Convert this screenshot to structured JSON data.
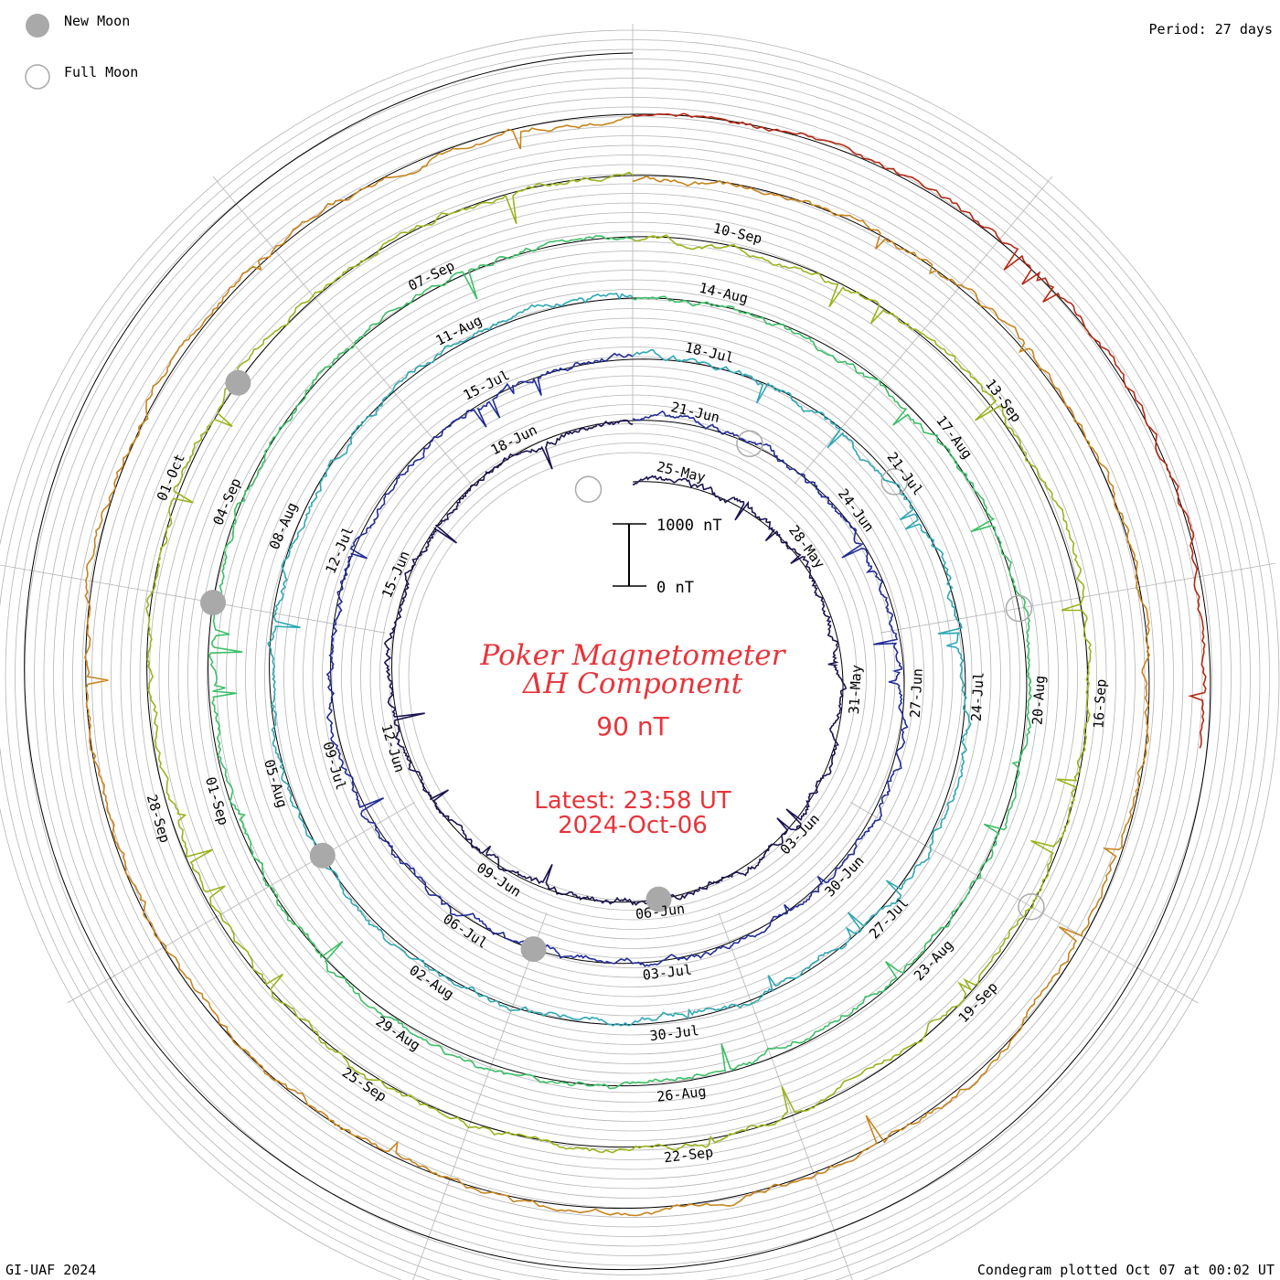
{
  "legend": {
    "new_moon": "New Moon",
    "full_moon": "Full Moon"
  },
  "period": "Period: 27 days",
  "footer_left": "GI-UAF 2024",
  "footer_right": "Condegram plotted Oct 07 at 00:02 UT",
  "title": {
    "line1": "Poker Magnetometer",
    "line2": "ΔH Component",
    "baseline": "90 nT",
    "latest_label": "Latest: 23:58 UT",
    "latest_date": "2024-Oct-06"
  },
  "scale_bar": {
    "top": "1000 nT",
    "bottom": "0 nT"
  },
  "colors": {
    "title": "#e8343a",
    "grid": "#b4b4b4",
    "ref": "#000000",
    "new_moon": "#a9a9a9",
    "full_moon": "#a9a9a9"
  },
  "chart_data": {
    "type": "condegram",
    "period_days": 27,
    "series": [
      {
        "rotation": 1,
        "color": "#1a1450",
        "tick_labels": [
          "25-May",
          "28-May",
          "31-May",
          "03-Jun",
          "06-Jun",
          "09-Jun",
          "12-Jun",
          "15-Jun",
          "18-Jun"
        ]
      },
      {
        "rotation": 2,
        "color": "#222d96",
        "tick_labels": [
          "21-Jun",
          "24-Jun",
          "27-Jun",
          "30-Jun",
          "03-Jul",
          "06-Jul",
          "09-Jul",
          "12-Jul",
          "15-Jul"
        ]
      },
      {
        "rotation": 3,
        "color": "#2ea7b4",
        "tick_labels": [
          "18-Jul",
          "21-Jul",
          "24-Jul",
          "27-Jul",
          "30-Jul",
          "02-Aug",
          "05-Aug",
          "08-Aug",
          "11-Aug"
        ]
      },
      {
        "rotation": 4,
        "color": "#3cbf66",
        "tick_labels": [
          "14-Aug",
          "17-Aug",
          "20-Aug",
          "23-Aug",
          "26-Aug",
          "29-Aug",
          "01-Sep",
          "04-Sep",
          "07-Sep"
        ]
      },
      {
        "rotation": 5,
        "color": "#9ab41e",
        "tick_labels": [
          "10-Sep",
          "13-Sep",
          "16-Sep",
          "19-Sep",
          "22-Sep",
          "25-Sep",
          "28-Sep",
          "01-Oct"
        ]
      },
      {
        "rotation": 6,
        "color": "#c8841e",
        "tick_labels": []
      },
      {
        "rotation": 7,
        "color": "#b42a14",
        "tick_labels": []
      }
    ],
    "new_moons": [
      "2024-06-06",
      "2024-07-05",
      "2024-08-04",
      "2024-09-03",
      "2024-10-02"
    ],
    "full_moons": [
      "2024-05-23",
      "2024-06-22",
      "2024-07-21",
      "2024-08-19",
      "2024-09-18"
    ],
    "scale_nT": [
      0,
      1000
    ],
    "baseline_nT": 90
  }
}
